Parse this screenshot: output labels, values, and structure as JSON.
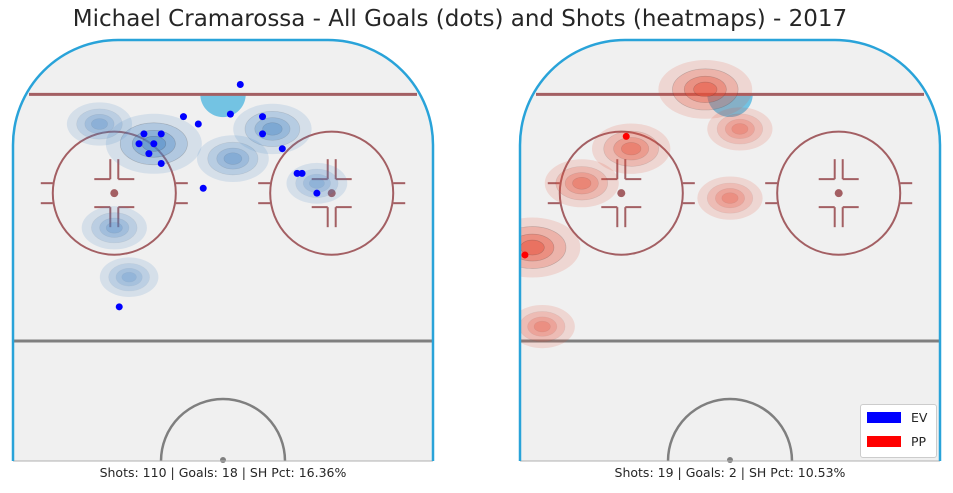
{
  "title": "Michael Cramarossa - All Goals (dots) and Shots (heatmaps) - 2017",
  "colors": {
    "ev": "#0000ff",
    "pp": "#ff0000",
    "ice": "#f0f0f0",
    "boards": "#29a3d9",
    "goal_line": "#a35f63",
    "red_markings": "#a35f63",
    "blue_line": "#7f7f7f",
    "crease": "#73c3e3"
  },
  "legend": {
    "items": [
      {
        "label": "EV",
        "color": "#0000ff"
      },
      {
        "label": "PP",
        "color": "#ff0000"
      }
    ],
    "placement": "lower-right"
  },
  "panels": [
    {
      "id": "ev",
      "caption": "Shots: 110 | Goals: 18 | SH Pct: 16.36%"
    },
    {
      "id": "pp",
      "caption": "Shots: 19 | Goals: 2 | SH Pct: 10.53%"
    }
  ],
  "chart_data": [
    {
      "type": "scatter",
      "title": "Michael Cramarossa - All Goals (dots) and Shots (heatmaps) - 2017",
      "strength": "EV",
      "color": "#0000ff",
      "heatmap_color": "#4a87c7",
      "shots": 110,
      "goals": 18,
      "sh_pct": "16.36%",
      "xlim": [
        -42.5,
        42.5
      ],
      "ylim": [
        25,
        100
      ],
      "grid": false,
      "goal_points": [
        {
          "x": -4,
          "y": 70
        },
        {
          "x": -15,
          "y": 77
        },
        {
          "x": -16,
          "y": 81
        },
        {
          "x": -14,
          "y": 79
        },
        {
          "x": -12.5,
          "y": 81
        },
        {
          "x": -17,
          "y": 79
        },
        {
          "x": -12.5,
          "y": 75
        },
        {
          "x": -8,
          "y": 84.5
        },
        {
          "x": -5,
          "y": 83
        },
        {
          "x": 3.5,
          "y": 91
        },
        {
          "x": 8,
          "y": 84.5
        },
        {
          "x": 12,
          "y": 78
        },
        {
          "x": 16,
          "y": 73
        },
        {
          "x": 19,
          "y": 69
        },
        {
          "x": 15,
          "y": 73
        },
        {
          "x": 8,
          "y": 81
        },
        {
          "x": 1.5,
          "y": 85
        },
        {
          "x": -21,
          "y": 46
        }
      ],
      "density_peaks": [
        {
          "x": -14,
          "y": 79,
          "weight": 1.0
        },
        {
          "x": 10,
          "y": 82,
          "weight": 0.6
        },
        {
          "x": 2,
          "y": 76,
          "weight": 0.45
        },
        {
          "x": -25,
          "y": 83,
          "weight": 0.3
        },
        {
          "x": -22,
          "y": 62,
          "weight": 0.3
        },
        {
          "x": -19,
          "y": 52,
          "weight": 0.15
        },
        {
          "x": 19,
          "y": 71,
          "weight": 0.2
        }
      ]
    },
    {
      "type": "scatter",
      "strength": "PP",
      "color": "#ff0000",
      "heatmap_color": "#e8513a",
      "shots": 19,
      "goals": 2,
      "sh_pct": "10.53%",
      "xlim": [
        -42.5,
        42.5
      ],
      "ylim": [
        25,
        100
      ],
      "grid": false,
      "goal_points": [
        {
          "x": -41.5,
          "y": 56.5
        },
        {
          "x": -21,
          "y": 80.5
        }
      ],
      "density_peaks": [
        {
          "x": -40,
          "y": 58,
          "weight": 1.0
        },
        {
          "x": -20,
          "y": 78,
          "weight": 0.6
        },
        {
          "x": -5,
          "y": 90,
          "weight": 0.95
        },
        {
          "x": -30,
          "y": 71,
          "weight": 0.5
        },
        {
          "x": 2,
          "y": 82,
          "weight": 0.3
        },
        {
          "x": -38,
          "y": 42,
          "weight": 0.3
        },
        {
          "x": 0,
          "y": 68,
          "weight": 0.3
        }
      ]
    }
  ]
}
